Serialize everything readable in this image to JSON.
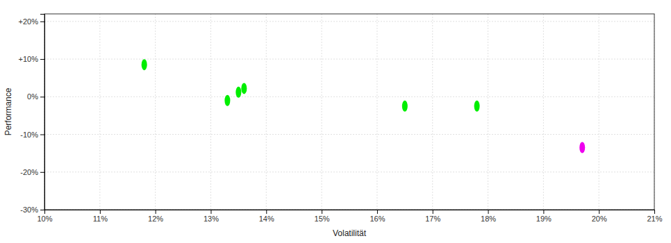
{
  "chart_data": {
    "type": "scatter",
    "xlabel": "Volatilität",
    "ylabel": "Performance",
    "xlim": [
      0.1,
      0.21
    ],
    "ylim": [
      -0.3,
      0.22
    ],
    "xticks": [
      {
        "value": 0.1,
        "label": "10%"
      },
      {
        "value": 0.11,
        "label": "11%"
      },
      {
        "value": 0.12,
        "label": "12%"
      },
      {
        "value": 0.13,
        "label": "13%"
      },
      {
        "value": 0.14,
        "label": "14%"
      },
      {
        "value": 0.15,
        "label": "15%"
      },
      {
        "value": 0.16,
        "label": "16%"
      },
      {
        "value": 0.17,
        "label": "17%"
      },
      {
        "value": 0.18,
        "label": "18%"
      },
      {
        "value": 0.19,
        "label": "19%"
      },
      {
        "value": 0.2,
        "label": "20%"
      },
      {
        "value": 0.21,
        "label": "21%"
      }
    ],
    "yticks": [
      {
        "value": -0.3,
        "label": "-30%"
      },
      {
        "value": -0.2,
        "label": "-20%"
      },
      {
        "value": -0.1,
        "label": "-10%"
      },
      {
        "value": 0.0,
        "label": "0%"
      },
      {
        "value": 0.1,
        "label": "+10%"
      },
      {
        "value": 0.2,
        "label": "+20%"
      }
    ],
    "grid": true,
    "marker": "ellipse",
    "series": [
      {
        "color": "#00ee00",
        "x": [
          0.118,
          0.133,
          0.135,
          0.136,
          0.165,
          0.178
        ],
        "values": [
          0.085,
          -0.01,
          0.012,
          0.022,
          -0.025,
          -0.025
        ]
      },
      {
        "color": "#ee00ee",
        "x": [
          0.197
        ],
        "values": [
          -0.135
        ]
      }
    ]
  }
}
